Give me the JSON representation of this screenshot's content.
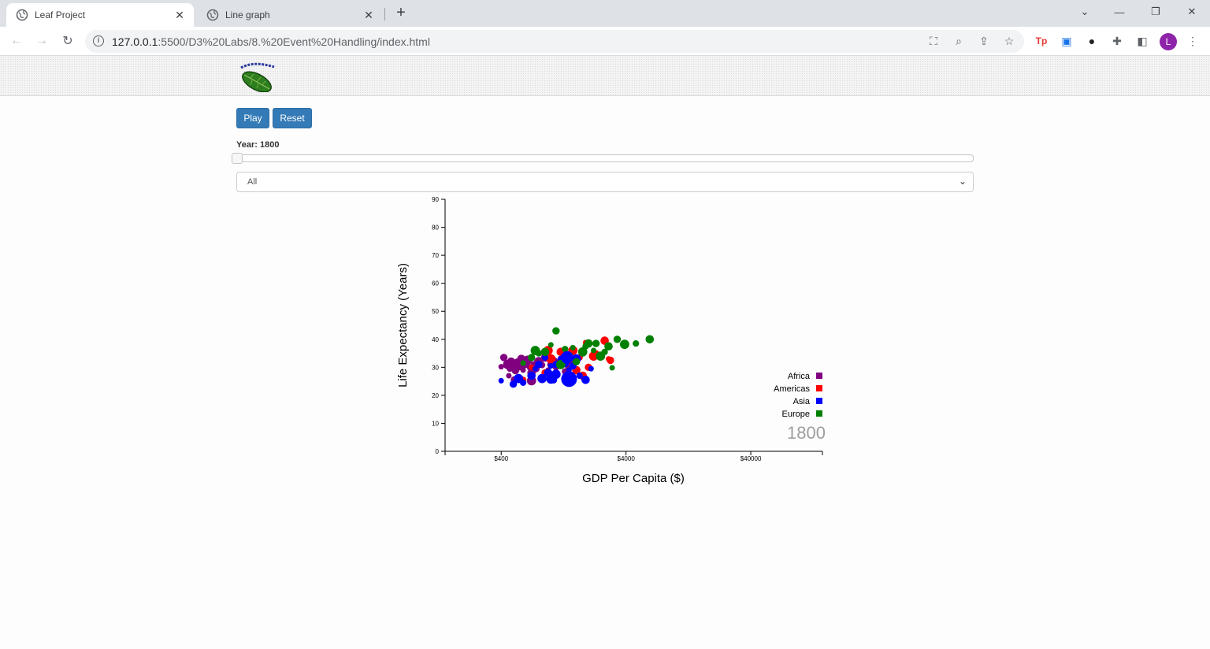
{
  "browser": {
    "tabs": [
      {
        "title": "Leaf Project",
        "active": true
      },
      {
        "title": "Line graph",
        "active": false
      }
    ],
    "url_host": "127.0.0.1",
    "url_path": ":5500/D3%20Labs/8.%20Event%20Handling/index.html",
    "profile_initial": "L"
  },
  "controls": {
    "play_label": "Play",
    "reset_label": "Reset",
    "year_label": "Year: 1800",
    "filter_selected": "All"
  },
  "chart_data": {
    "type": "scatter",
    "xlabel": "GDP Per Capita ($)",
    "ylabel": "Life Expectancy (Years)",
    "x_scale": "log",
    "xlim": [
      142,
      150000
    ],
    "x_ticks": [
      400,
      4000,
      40000
    ],
    "x_tick_labels": [
      "$400",
      "$4000",
      "$40000"
    ],
    "ylim": [
      0,
      90
    ],
    "y_ticks": [
      0,
      10,
      20,
      30,
      40,
      50,
      60,
      70,
      80,
      90
    ],
    "year_display": "1800",
    "legend": [
      {
        "name": "Africa",
        "color": "#800080"
      },
      {
        "name": "Americas",
        "color": "#ff0000"
      },
      {
        "name": "Asia",
        "color": "#0000ff"
      },
      {
        "name": "Europe",
        "color": "#008000"
      }
    ],
    "series": [
      {
        "name": "Africa",
        "points": [
          [
            400,
            30.2
          ],
          [
            420,
            33.5
          ],
          [
            450,
            31
          ],
          [
            470,
            29.5
          ],
          [
            480,
            32
          ],
          [
            500,
            30.5
          ],
          [
            520,
            28.8
          ],
          [
            540,
            31.5
          ],
          [
            560,
            30
          ],
          [
            580,
            33
          ],
          [
            600,
            29
          ],
          [
            620,
            31
          ],
          [
            650,
            32.5
          ],
          [
            680,
            30
          ],
          [
            700,
            28
          ],
          [
            730,
            31.2
          ],
          [
            760,
            29.5
          ],
          [
            800,
            32
          ],
          [
            850,
            30.8
          ],
          [
            900,
            33.5
          ],
          [
            950,
            29
          ],
          [
            1000,
            31
          ],
          [
            1050,
            32
          ],
          [
            1100,
            30
          ],
          [
            1200,
            31.5
          ],
          [
            460,
            27
          ],
          [
            510,
            25.5
          ],
          [
            700,
            25.2
          ],
          [
            1300,
            28.5
          ],
          [
            1400,
            30.5
          ]
        ]
      },
      {
        "name": "Americas",
        "points": [
          [
            700,
            30
          ],
          [
            900,
            28
          ],
          [
            1000,
            33
          ],
          [
            1100,
            31
          ],
          [
            1200,
            35.5
          ],
          [
            1300,
            25.3
          ],
          [
            1400,
            32
          ],
          [
            1500,
            36
          ],
          [
            1700,
            33.5
          ],
          [
            1800,
            27
          ],
          [
            1900,
            38.8
          ],
          [
            2000,
            30
          ],
          [
            2200,
            34
          ],
          [
            2300,
            35
          ],
          [
            2700,
            39.5
          ],
          [
            2900,
            33
          ],
          [
            3000,
            32.5
          ],
          [
            950,
            36
          ],
          [
            600,
            25.5
          ],
          [
            1600,
            29
          ]
        ]
      },
      {
        "name": "Asia",
        "points": [
          [
            400,
            25.2
          ],
          [
            500,
            24
          ],
          [
            550,
            26
          ],
          [
            600,
            24.5
          ],
          [
            700,
            27
          ],
          [
            750,
            29.5
          ],
          [
            800,
            31
          ],
          [
            850,
            26
          ],
          [
            900,
            33.5
          ],
          [
            950,
            28
          ],
          [
            1000,
            30.5
          ],
          [
            1050,
            25.5
          ],
          [
            1100,
            27.5
          ],
          [
            1200,
            33
          ],
          [
            1300,
            31.5
          ],
          [
            1400,
            29
          ],
          [
            1500,
            30.5
          ],
          [
            1600,
            33
          ],
          [
            1700,
            27
          ],
          [
            1900,
            25.5
          ],
          [
            2100,
            29.5
          ],
          [
            1100,
            31
          ],
          [
            1000,
            25.8
          ]
        ]
      },
      {
        "name": "Europe",
        "points": [
          [
            600,
            31.5
          ],
          [
            700,
            33.5
          ],
          [
            750,
            36
          ],
          [
            800,
            35
          ],
          [
            900,
            35.5
          ],
          [
            1000,
            38
          ],
          [
            1100,
            43
          ],
          [
            1200,
            31
          ],
          [
            1300,
            36.5
          ],
          [
            1400,
            34
          ],
          [
            1500,
            37
          ],
          [
            1600,
            32
          ],
          [
            1800,
            35.5
          ],
          [
            1900,
            37.5
          ],
          [
            2000,
            38.5
          ],
          [
            2200,
            36
          ],
          [
            2300,
            38.5
          ],
          [
            2500,
            34
          ],
          [
            2700,
            35.5
          ],
          [
            2900,
            37.5
          ],
          [
            3100,
            29.8
          ],
          [
            3400,
            40
          ],
          [
            3900,
            38.2
          ],
          [
            4800,
            38.5
          ],
          [
            6200,
            40
          ]
        ]
      }
    ]
  }
}
